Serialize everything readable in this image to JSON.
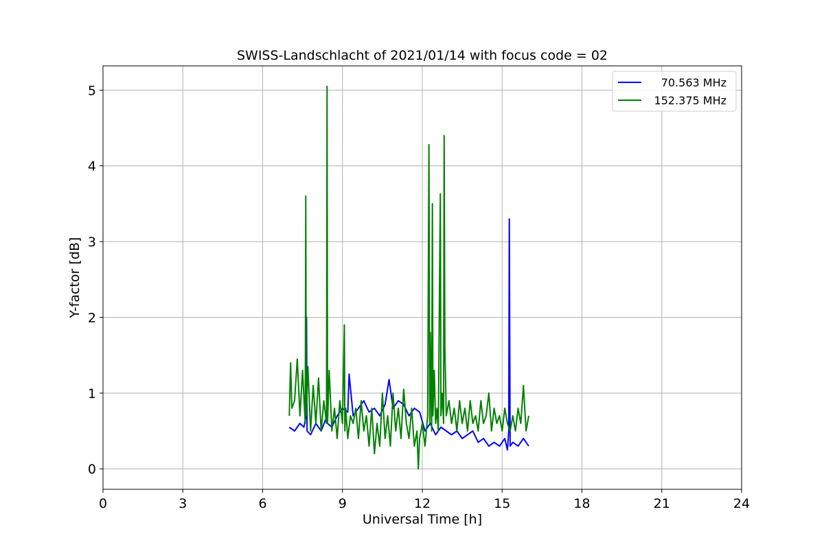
{
  "chart_data": {
    "type": "line",
    "title": "SWISS-Landschlacht of 2021/01/14 with focus code = 02",
    "xlabel": "Universal Time [h]",
    "ylabel": "Y-factor [dB]",
    "xlim": [
      0,
      24
    ],
    "ylim": [
      -0.27,
      5.32
    ],
    "xticks": [
      0,
      3,
      6,
      9,
      12,
      15,
      18,
      21,
      24
    ],
    "yticks": [
      0,
      1,
      2,
      3,
      4,
      5
    ],
    "grid": true,
    "legend_position": "top-right",
    "series": [
      {
        "name": "70.563 MHz",
        "color": "#0000ff",
        "x": [
          7.0,
          7.2,
          7.4,
          7.55,
          7.63,
          7.65,
          7.67,
          7.8,
          8.0,
          8.2,
          8.42,
          8.44,
          8.6,
          8.8,
          9.0,
          9.2,
          9.25,
          9.4,
          9.6,
          9.8,
          10.0,
          10.2,
          10.4,
          10.6,
          10.75,
          10.9,
          11.1,
          11.3,
          11.5,
          11.7,
          11.9,
          12.1,
          12.3,
          12.5,
          12.7,
          12.9,
          13.1,
          13.3,
          13.5,
          13.7,
          13.9,
          14.1,
          14.3,
          14.5,
          14.7,
          14.9,
          15.1,
          15.2,
          15.25,
          15.27,
          15.3,
          15.4,
          15.6,
          15.8,
          16.0
        ],
        "y": [
          0.55,
          0.5,
          0.6,
          0.55,
          0.7,
          2.0,
          0.5,
          0.45,
          0.6,
          0.5,
          0.7,
          0.6,
          0.55,
          0.7,
          0.8,
          0.75,
          1.25,
          0.7,
          0.8,
          0.9,
          0.75,
          0.8,
          0.7,
          0.85,
          1.18,
          0.8,
          0.9,
          0.85,
          0.7,
          0.8,
          0.75,
          0.5,
          0.6,
          0.45,
          0.55,
          0.5,
          0.45,
          0.5,
          0.4,
          0.45,
          0.5,
          0.35,
          0.4,
          0.3,
          0.35,
          0.3,
          0.4,
          0.25,
          0.5,
          3.3,
          0.3,
          0.35,
          0.3,
          0.4,
          0.3
        ]
      },
      {
        "name": "152.375 MHz",
        "color": "#008000",
        "x": [
          7.0,
          7.05,
          7.1,
          7.2,
          7.3,
          7.4,
          7.5,
          7.6,
          7.62,
          7.64,
          7.7,
          7.8,
          7.9,
          8.0,
          8.1,
          8.2,
          8.3,
          8.4,
          8.42,
          8.44,
          8.5,
          8.6,
          8.7,
          8.8,
          8.9,
          9.0,
          9.07,
          9.09,
          9.12,
          9.2,
          9.3,
          9.4,
          9.5,
          9.6,
          9.7,
          9.8,
          9.9,
          10.0,
          10.1,
          10.2,
          10.3,
          10.4,
          10.5,
          10.6,
          10.7,
          10.8,
          10.9,
          11.0,
          11.1,
          11.2,
          11.3,
          11.4,
          11.5,
          11.6,
          11.7,
          11.8,
          11.85,
          11.9,
          12.0,
          12.1,
          12.2,
          12.22,
          12.25,
          12.28,
          12.3,
          12.35,
          12.38,
          12.4,
          12.45,
          12.5,
          12.55,
          12.6,
          12.65,
          12.68,
          12.7,
          12.75,
          12.8,
          12.82,
          12.85,
          12.9,
          13.0,
          13.1,
          13.2,
          13.3,
          13.4,
          13.5,
          13.6,
          13.7,
          13.8,
          13.9,
          14.0,
          14.1,
          14.2,
          14.3,
          14.4,
          14.5,
          14.6,
          14.7,
          14.8,
          14.9,
          15.0,
          15.1,
          15.2,
          15.3,
          15.4,
          15.5,
          15.6,
          15.7,
          15.8,
          15.9,
          16.0
        ],
        "y": [
          0.7,
          1.4,
          0.8,
          0.9,
          1.45,
          0.7,
          1.3,
          0.6,
          3.6,
          0.7,
          1.35,
          0.5,
          1.1,
          0.6,
          1.2,
          0.5,
          0.9,
          0.6,
          5.05,
          0.6,
          1.3,
          0.5,
          0.8,
          0.4,
          0.9,
          0.6,
          1.9,
          0.5,
          0.8,
          0.4,
          0.7,
          0.6,
          0.8,
          0.4,
          0.9,
          0.5,
          0.7,
          0.3,
          0.8,
          0.2,
          0.6,
          0.3,
          1.0,
          0.4,
          0.7,
          0.3,
          1.0,
          0.5,
          0.8,
          0.4,
          1.05,
          0.6,
          0.4,
          0.8,
          0.3,
          0.5,
          0.0,
          0.4,
          0.6,
          0.3,
          0.7,
          2.0,
          4.28,
          0.6,
          1.8,
          0.5,
          3.5,
          0.7,
          1.3,
          0.6,
          0.8,
          0.5,
          2.55,
          3.63,
          0.7,
          1.0,
          0.6,
          4.4,
          1.6,
          0.7,
          0.9,
          0.6,
          0.8,
          0.5,
          0.9,
          0.6,
          0.8,
          0.5,
          0.9,
          0.6,
          0.7,
          0.5,
          0.9,
          0.6,
          0.7,
          1.0,
          0.5,
          0.8,
          0.6,
          0.7,
          0.5,
          0.8,
          0.6,
          0.5,
          0.7,
          0.5,
          0.8,
          0.6,
          1.1,
          0.5,
          0.7
        ]
      }
    ]
  }
}
